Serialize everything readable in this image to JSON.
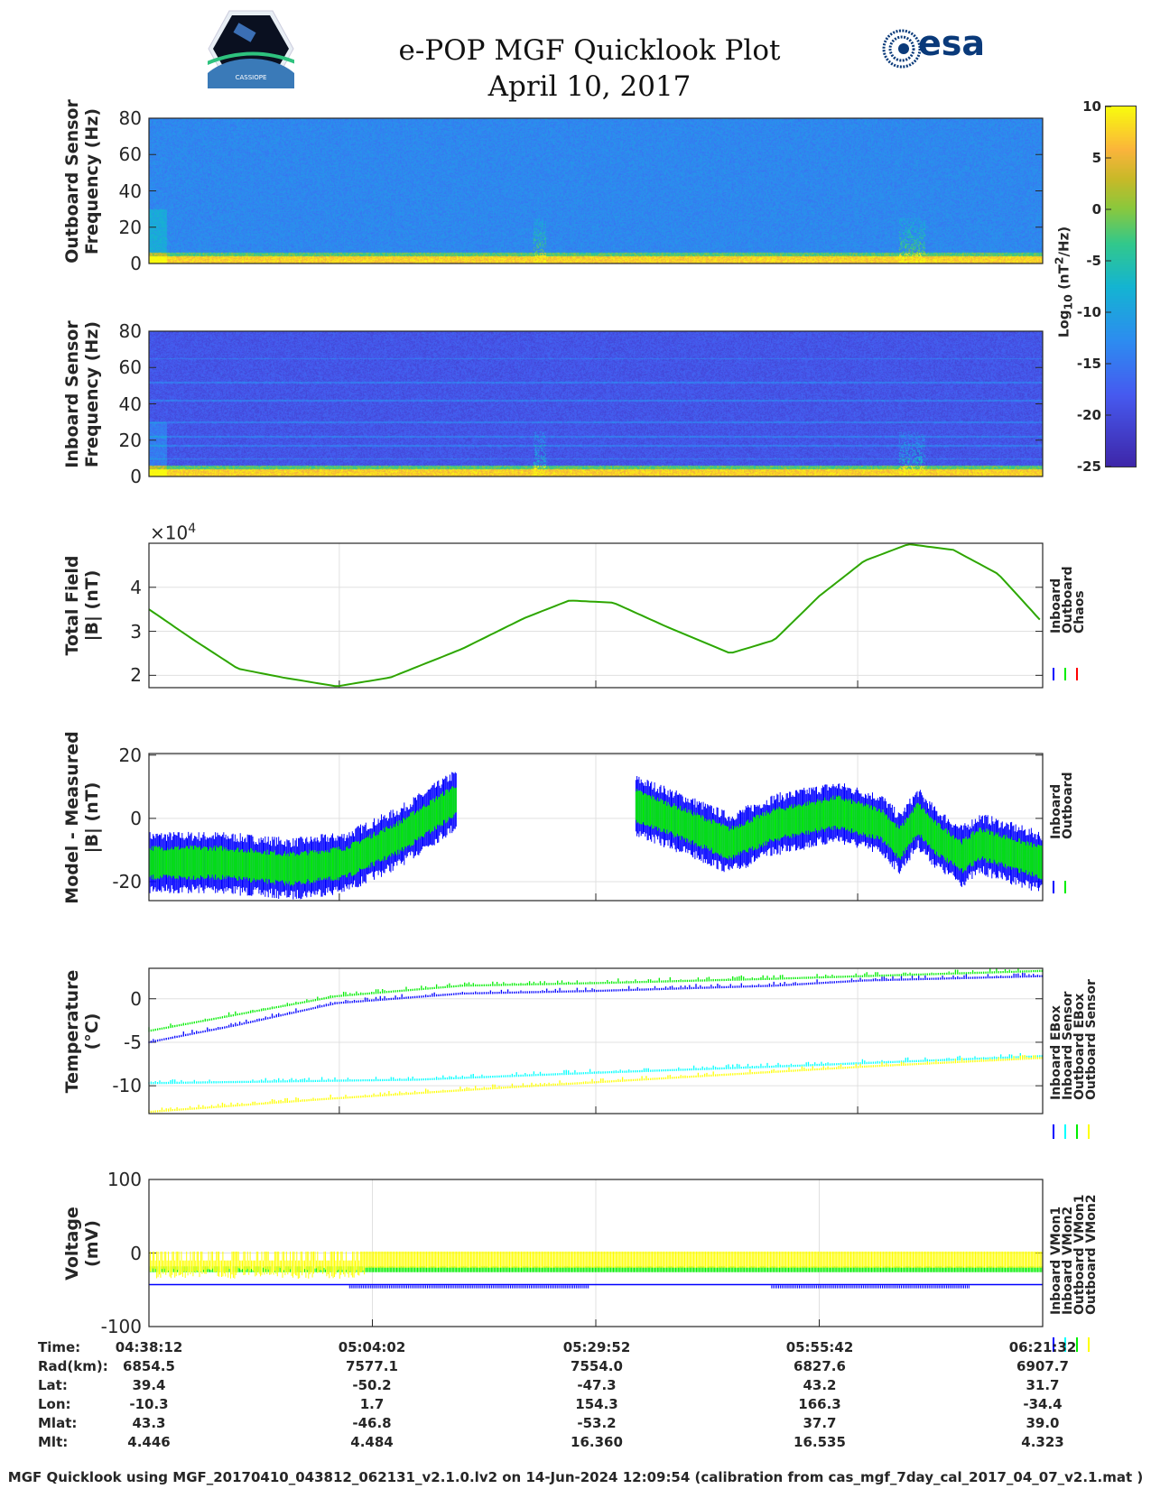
{
  "header": {
    "title_line1": "e-POP MGF Quicklook Plot",
    "title_line2": "April 10, 2017",
    "logo_left_text": "CASSIOPE",
    "logo_right_text": "esa"
  },
  "colors": {
    "inboard": "#0000ff",
    "outboard": "#00ee00",
    "chaos": "#ff0000",
    "cyan": "#00ffff",
    "yellow": "#ffff00"
  },
  "chart_data": [
    {
      "type": "heatmap",
      "name": "outboard-spectrogram",
      "ylabel_line1": "Outboard Sensor",
      "ylabel_line2": "Frequency (Hz)",
      "ylim": [
        0,
        80
      ],
      "yticks": [
        "80",
        "60",
        "40",
        "20",
        "0"
      ]
    },
    {
      "type": "heatmap",
      "name": "inboard-spectrogram",
      "ylabel_line1": "Inboard Sensor",
      "ylabel_line2": "Frequency (Hz)",
      "ylim": [
        0,
        80
      ],
      "yticks": [
        "80",
        "60",
        "40",
        "20",
        "0"
      ]
    },
    {
      "type": "colorbar",
      "label": "Log10 (nT2/Hz)",
      "label_main": "Log",
      "label_sub": "10",
      "label_rest1": " (nT",
      "label_sup": "2",
      "label_rest2": "/Hz)",
      "clim": [
        -25,
        10
      ],
      "ticks": [
        "10",
        "5",
        "0",
        "-5",
        "-10",
        "-15",
        "-20",
        "-25"
      ]
    },
    {
      "type": "line",
      "name": "total-field",
      "ylabel_line1": "Total Field",
      "ylabel_line2": "|B| (nT)",
      "exponent_label": "×10",
      "exponent": "4",
      "ylim": [
        1.72,
        5.0
      ],
      "yticks": [
        "4",
        "3",
        "2"
      ],
      "legend": [
        "Inboard",
        "Outboard",
        "Chaos"
      ],
      "x_minutes": [
        0,
        5.2,
        10.3,
        15.5,
        21.7,
        27.9,
        36.2,
        43.4,
        48.6,
        53.7,
        59.9,
        67.2,
        72.3,
        77.5,
        82.7,
        87.8,
        93,
        98.2,
        103.3
      ],
      "series": [
        {
          "name": "Chaos",
          "values": [
            3.5,
            2.8,
            2.15,
            1.95,
            1.75,
            1.95,
            2.6,
            3.3,
            3.7,
            3.65,
            3.1,
            2.5,
            2.8,
            3.8,
            4.6,
            4.98,
            4.85,
            4.3,
            3.2
          ]
        }
      ]
    },
    {
      "type": "area",
      "name": "model-minus-measured",
      "ylabel_line1": "Model - Measured",
      "ylabel_line2": "|B| (nT)",
      "ylim": [
        -26,
        20.5
      ],
      "yticks": [
        "20",
        "0",
        "-20"
      ],
      "legend": [
        "Inboard",
        "Outboard"
      ],
      "segments": [
        {
          "x_minutes": [
            0,
            8.3,
            16.5,
            22.7,
            28.9,
            35.6
          ],
          "center": [
            -14,
            -14,
            -16,
            -14,
            -6,
            6
          ]
        },
        {
          "x_minutes": [
            56.3,
            62,
            67.2,
            72.3,
            79.6,
            84.7,
            86.8,
            88.9,
            90.9,
            94,
            96.1,
            103.3
          ],
          "center": [
            4,
            -2,
            -8,
            -2,
            2,
            -2,
            -8,
            0,
            -6,
            -12,
            -8,
            -14
          ]
        }
      ],
      "series": [
        {
          "name": "Inboard",
          "half_range": 9
        },
        {
          "name": "Outboard",
          "half_range": 5
        }
      ]
    },
    {
      "type": "line",
      "name": "temperature",
      "ylabel_line1": "Temperature",
      "ylabel_line2": "(°C)",
      "ylim": [
        -13.2,
        3.5
      ],
      "yticks": [
        "0",
        "-5",
        "-10"
      ],
      "legend": [
        "Inboard EBox",
        "Inboard Sensor",
        "Outboard EBox",
        "Outboard Sensor"
      ],
      "series": [
        {
          "name": "Inboard EBox",
          "x_minutes": [
            0,
            10.3,
            21.7,
            36.2,
            51.7,
            72.3,
            82.7,
            103.3
          ],
          "values": [
            -5,
            -3,
            -0.5,
            0.6,
            0.9,
            1.5,
            2.1,
            2.6
          ]
        },
        {
          "name": "Inboard Sensor",
          "x_minutes": [
            0,
            10.3,
            21.7,
            36.2,
            51.7,
            72.3,
            103.3
          ],
          "values": [
            -3.7,
            -1.8,
            0.3,
            1.5,
            1.8,
            2.3,
            3.2
          ]
        },
        {
          "name": "Outboard EBox",
          "x_minutes": [
            0,
            31,
            51.7,
            72.3,
            103.3
          ],
          "values": [
            -9.7,
            -9.3,
            -8.5,
            -7.8,
            -6.6
          ]
        },
        {
          "name": "Outboard Sensor",
          "x_minutes": [
            0,
            20.7,
            41.3,
            62,
            82.7,
            103.3
          ],
          "values": [
            -13,
            -11.5,
            -10.2,
            -9,
            -7.8,
            -6.8
          ]
        }
      ]
    },
    {
      "type": "line",
      "name": "voltage",
      "ylabel_line1": "Voltage",
      "ylabel_line2": "(mV)",
      "ylim": [
        -100,
        100
      ],
      "yticks": [
        "100",
        "0",
        "-100"
      ],
      "legend": [
        "Inboard VMon1",
        "Inboard VMon2",
        "Outboard VMon1",
        "Outboard VMon2"
      ],
      "series": [
        {
          "name": "Inboard VMon1",
          "x_minutes": [
            0,
            103.3
          ],
          "values": [
            -47,
            -48
          ]
        },
        {
          "name": "Inboard VMon2",
          "x_minutes": [
            0,
            103.3
          ],
          "values": [
            -22,
            -22
          ]
        },
        {
          "name": "Outboard VMon1",
          "x_minutes": [
            0,
            103.3
          ],
          "values": [
            -22,
            -22
          ]
        },
        {
          "name": "Outboard VMon2",
          "x_minutes": [
            0,
            103.3
          ],
          "values": [
            -10,
            -10
          ]
        }
      ]
    }
  ],
  "table": {
    "labels": [
      "Time:",
      "Rad(km):",
      "Lat:",
      "Lon:",
      "Mlat:",
      "Mlt:"
    ],
    "columns": [
      [
        "04:38:12",
        "6854.5",
        "39.4",
        "-10.3",
        "43.3",
        "4.446"
      ],
      [
        "05:04:02",
        "7577.1",
        "-50.2",
        "1.7",
        "-46.8",
        "4.484"
      ],
      [
        "05:29:52",
        "7554.0",
        "-47.3",
        "154.3",
        "-53.2",
        "16.360"
      ],
      [
        "05:55:42",
        "6827.6",
        "43.2",
        "166.3",
        "37.7",
        "16.535"
      ],
      [
        "06:21:32",
        "6907.7",
        "31.7",
        "-34.4",
        "39.0",
        "4.323"
      ]
    ]
  },
  "footer": "MGF Quicklook using MGF_20170410_043812_062131_v2.1.0.lv2 on 14-Jun-2024 12:09:54 (calibration from cas_mgf_7day_cal_2017_04_07_v2.1.mat )"
}
